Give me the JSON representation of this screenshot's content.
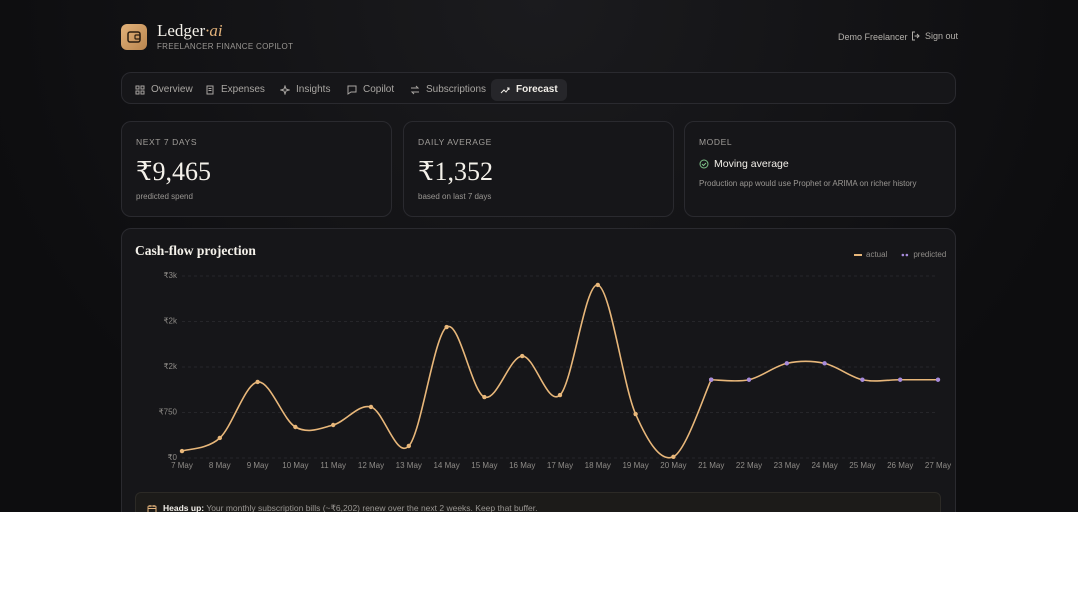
{
  "header": {
    "brand": "Ledger",
    "brand_suffix": "·ai",
    "tagline": "FREELANCER FINANCE COPILOT",
    "user": "Demo Freelancer",
    "sign_out": "Sign out"
  },
  "nav": {
    "tabs": [
      "Overview",
      "Expenses",
      "Insights",
      "Copilot",
      "Subscriptions",
      "Forecast"
    ],
    "active": "Forecast"
  },
  "cards": [
    {
      "label": "NEXT 7 DAYS",
      "value": "₹9,465",
      "note": "predicted spend"
    },
    {
      "label": "DAILY AVERAGE",
      "value": "₹1,352",
      "note": "based on last 7 days"
    },
    {
      "label": "MODEL",
      "value": "Moving average",
      "note": "Production app would use Prophet or ARIMA on richer history"
    }
  ],
  "chart_data": {
    "type": "line",
    "title": "Cash-flow projection",
    "categories": [
      "7 May",
      "8 May",
      "9 May",
      "10 May",
      "11 May",
      "12 May",
      "13 May",
      "14 May",
      "15 May",
      "16 May",
      "17 May",
      "18 May",
      "19 May",
      "20 May",
      "21 May",
      "22 May",
      "23 May",
      "24 May",
      "25 May",
      "26 May",
      "27 May"
    ],
    "series": [
      {
        "name": "actual",
        "color": "#e8b77a",
        "values": [
          115,
          330,
          1253,
          511,
          544,
          841,
          198,
          2159,
          1005,
          1681,
          1038,
          2852,
          725,
          20,
          1290,
          null,
          null,
          null,
          null,
          null,
          null
        ]
      },
      {
        "name": "predicted",
        "color": "#a78bdb",
        "values": [
          null,
          null,
          null,
          null,
          null,
          null,
          null,
          null,
          null,
          null,
          null,
          null,
          null,
          null,
          1290,
          1290,
          1560,
          1560,
          1290,
          1290,
          1290
        ]
      }
    ],
    "ylim": [
      0,
      3000
    ],
    "yticks": [
      {
        "value": 0,
        "label": "₹0"
      },
      {
        "value": 750,
        "label": "₹750"
      },
      {
        "value": 1500,
        "label": "₹2k"
      },
      {
        "value": 2250,
        "label": "₹2k"
      },
      {
        "value": 3000,
        "label": "₹3k"
      }
    ],
    "grid": true,
    "legend": "top-right"
  },
  "alert": {
    "label": "Heads up:",
    "text": "Your monthly subscription bills (~₹6,202) renew over the next 2 weeks. Keep that buffer."
  }
}
